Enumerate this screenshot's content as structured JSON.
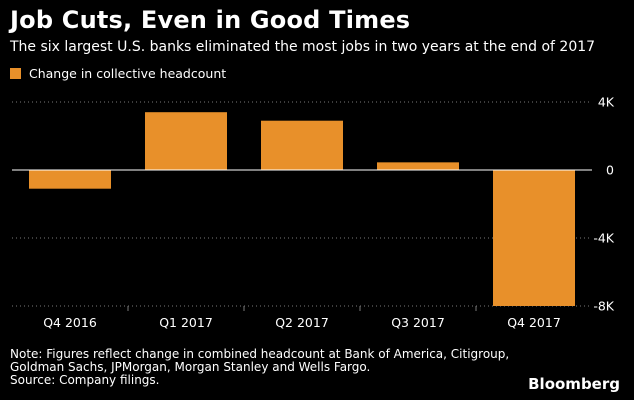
{
  "header": {
    "title": "Job Cuts, Even in Good Times",
    "subtitle": "The six largest U.S. banks eliminated the most jobs in two years at the end of 2017"
  },
  "footer": {
    "note_line1": "Note: Figures reflect change in combined headcount at Bank of America, Citigroup,",
    "note_line2": "Goldman Sachs, JPMorgan, Morgan Stanley and Wells Fargo.",
    "source": "Source: Company filings.",
    "brand": "Bloomberg"
  },
  "colors": {
    "bar": "#e8902a",
    "background": "#000000",
    "text": "#ffffff",
    "grid": "#7a7a7a",
    "zero_line": "#ffffff"
  },
  "chart_data": {
    "type": "bar",
    "title": "Job Cuts, Even in Good Times",
    "subtitle": "The six largest U.S. banks eliminated the most jobs in two years at the end of 2017",
    "categories": [
      "Q4 2016",
      "Q1 2017",
      "Q2 2017",
      "Q3 2017",
      "Q4 2017"
    ],
    "series": [
      {
        "name": "Change in collective headcount",
        "values": [
          -1100,
          3400,
          2900,
          450,
          -8000
        ]
      }
    ],
    "xlabel": "",
    "ylabel": "",
    "ylim": [
      -8000,
      4000
    ],
    "yticks": [
      4000,
      0,
      -4000,
      -8000
    ],
    "ytick_labels": [
      "4K",
      "0",
      "-4K",
      "-8K"
    ],
    "grid": true,
    "grid_style": "dotted-horizontal",
    "y_axis_side": "right",
    "legend": "top-left"
  }
}
